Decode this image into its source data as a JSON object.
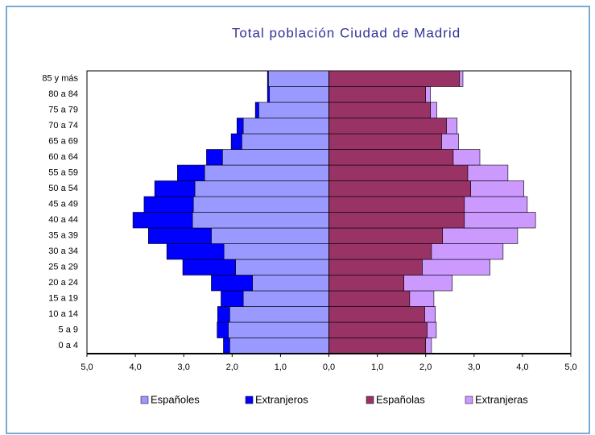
{
  "chart_data": {
    "type": "bar",
    "orientation": "horizontal",
    "stacked": true,
    "title": "Total población Ciudad de Madrid",
    "categories": [
      "0 a 4",
      "5 a 9",
      "10 a 14",
      "15 a 19",
      "20 a 24",
      "25 a 29",
      "30 a 34",
      "35 a 39",
      "40 a 44",
      "45 a 49",
      "50 a 54",
      "55 a 59",
      "60 a 64",
      "65 a 69",
      "70 a 74",
      "75 a 79",
      "80 a 84",
      "85 y más"
    ],
    "series": [
      {
        "name": "Españoles",
        "color": "#9999ff",
        "values": [
          -2.05,
          -2.08,
          -2.05,
          -1.77,
          -1.58,
          -1.93,
          -2.17,
          -2.43,
          -2.82,
          -2.8,
          -2.77,
          -2.57,
          -2.2,
          -1.8,
          -1.77,
          -1.45,
          -1.23,
          -1.25
        ]
      },
      {
        "name": "Extranjeros",
        "color": "#0000ff",
        "values": [
          -0.13,
          -0.23,
          -0.25,
          -0.46,
          -0.85,
          -1.09,
          -1.18,
          -1.3,
          -1.23,
          -1.02,
          -0.83,
          -0.56,
          -0.33,
          -0.22,
          -0.13,
          -0.07,
          -0.04,
          -0.02
        ]
      },
      {
        "name": "Españolas",
        "color": "#993366",
        "values": [
          2.0,
          2.03,
          1.98,
          1.67,
          1.55,
          1.93,
          2.12,
          2.35,
          2.8,
          2.8,
          2.93,
          2.87,
          2.57,
          2.33,
          2.43,
          2.1,
          2.0,
          2.7
        ]
      },
      {
        "name": "Extranjeras",
        "color": "#cc99ff",
        "values": [
          0.12,
          0.19,
          0.22,
          0.5,
          1.0,
          1.4,
          1.48,
          1.55,
          1.47,
          1.3,
          1.1,
          0.83,
          0.55,
          0.35,
          0.22,
          0.13,
          0.1,
          0.07
        ]
      }
    ],
    "xlim": [
      -5,
      5
    ],
    "xticks": [
      {
        "value": -5,
        "label": "5,0"
      },
      {
        "value": -4,
        "label": "4,0"
      },
      {
        "value": -3,
        "label": "3,0"
      },
      {
        "value": -2,
        "label": "2,0"
      },
      {
        "value": -1,
        "label": "1,0"
      },
      {
        "value": 0,
        "label": "0,0"
      },
      {
        "value": 1,
        "label": "1,0"
      },
      {
        "value": 2,
        "label": "2,0"
      },
      {
        "value": 3,
        "label": "3,0"
      },
      {
        "value": 4,
        "label": "4,0"
      },
      {
        "value": 5,
        "label": "5,0"
      }
    ],
    "legend": "bottom"
  }
}
